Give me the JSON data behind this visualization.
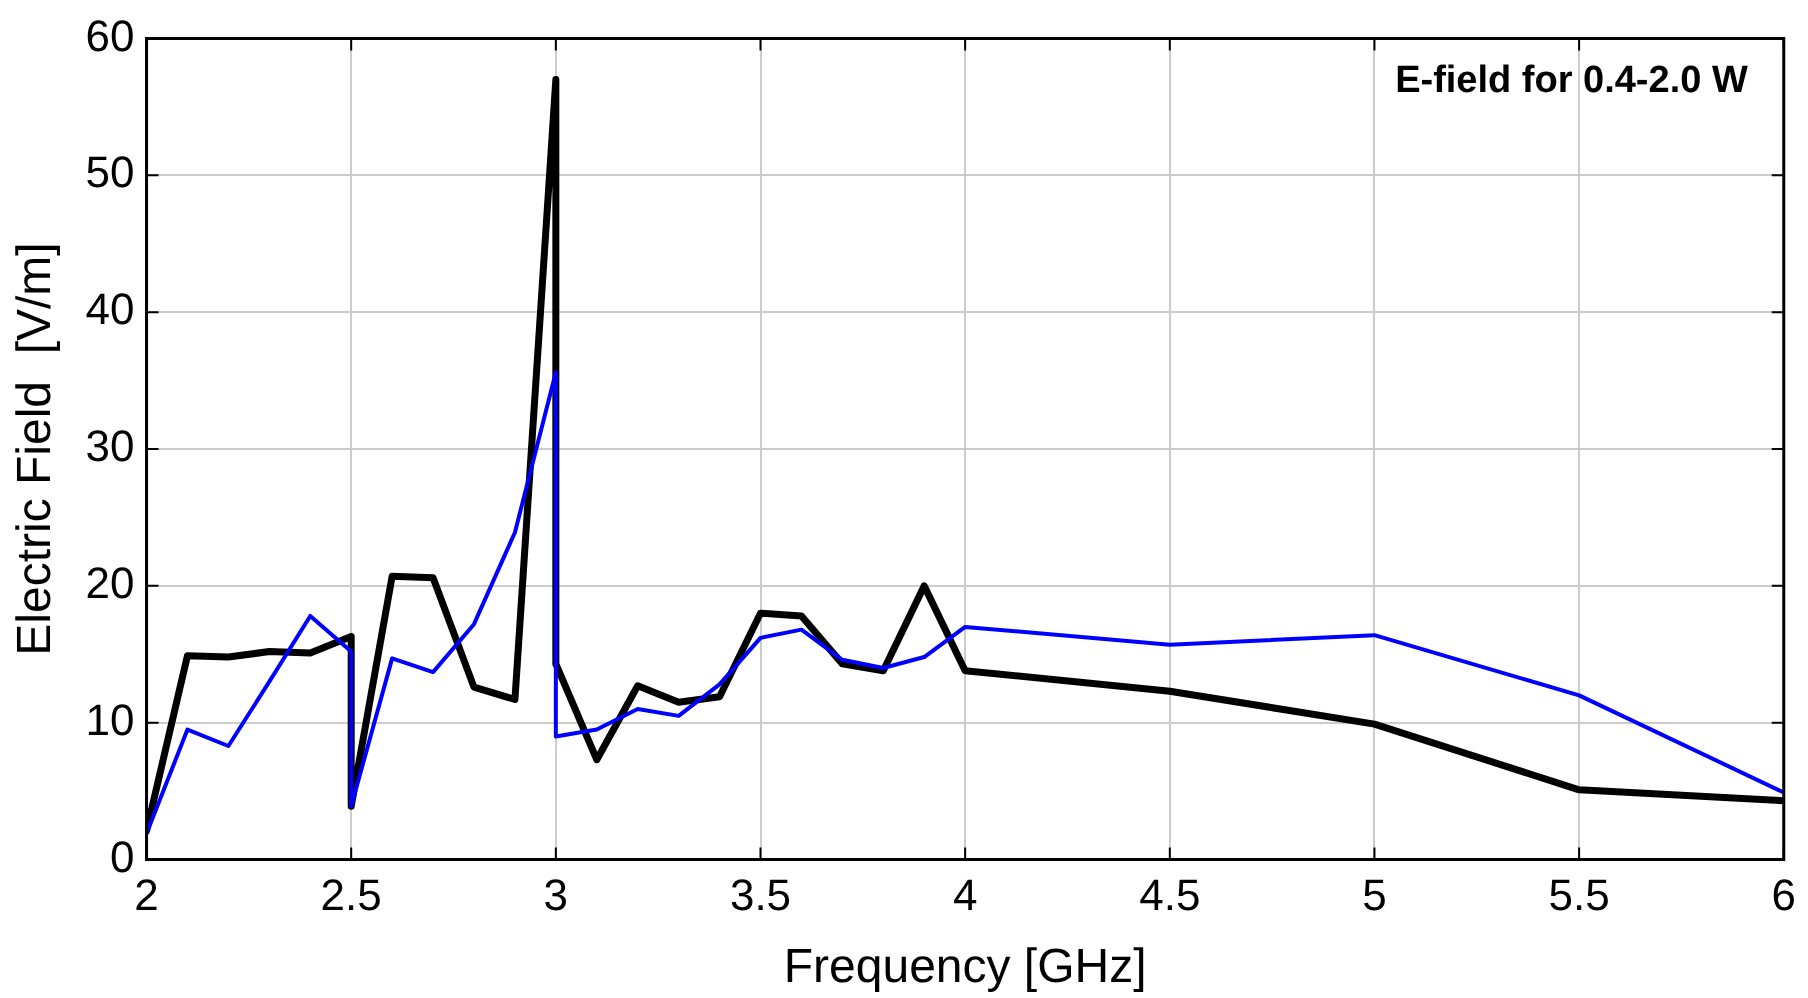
{
  "chart_data": {
    "type": "line",
    "xlabel": "Frequency [GHz]",
    "ylabel": "Electric Field  [V/m]",
    "annotations": [
      "E-field for 0.4-2.0 W"
    ],
    "x": [
      2,
      2.1,
      2.2,
      2.3,
      2.4,
      2.5,
      2.5,
      2.6,
      2.7,
      2.8,
      2.9,
      3,
      3,
      3.1,
      3.2,
      3.3,
      3.4,
      3.5,
      3.6,
      3.7,
      3.8,
      3.9,
      4,
      4.5,
      5,
      5.5,
      6
    ],
    "series": [
      {
        "color": "#0000ff",
        "values": [
          1.9,
          9.5,
          8.3,
          13,
          17.8,
          15.2,
          3.9,
          14.7,
          13.7,
          17.2,
          23.9,
          35.6,
          9,
          9.5,
          11,
          10.5,
          12.8,
          16.2,
          16.8,
          14.6,
          14,
          14.8,
          17,
          15.7,
          16.4,
          12,
          4.9
        ]
      },
      {
        "color": "#000000",
        "values": [
          2.1,
          14.9,
          14.8,
          15.2,
          15.1,
          16.3,
          3.9,
          20.7,
          20.6,
          12.6,
          11.7,
          57,
          14.3,
          7.3,
          12.7,
          11.5,
          11.9,
          18,
          17.8,
          14.3,
          13.8,
          20,
          13.8,
          12.3,
          9.9,
          5.1,
          4.3
        ]
      }
    ],
    "xlim": [
      2,
      6
    ],
    "xticks": [
      2,
      2.5,
      3,
      3.5,
      4,
      4.5,
      5,
      5.5,
      6
    ],
    "ylim": [
      0,
      60
    ],
    "yticks": [
      0,
      10,
      20,
      30,
      40,
      50,
      60
    ],
    "grid": true,
    "legend": false,
    "marker": "none",
    "line_style": "solid"
  }
}
